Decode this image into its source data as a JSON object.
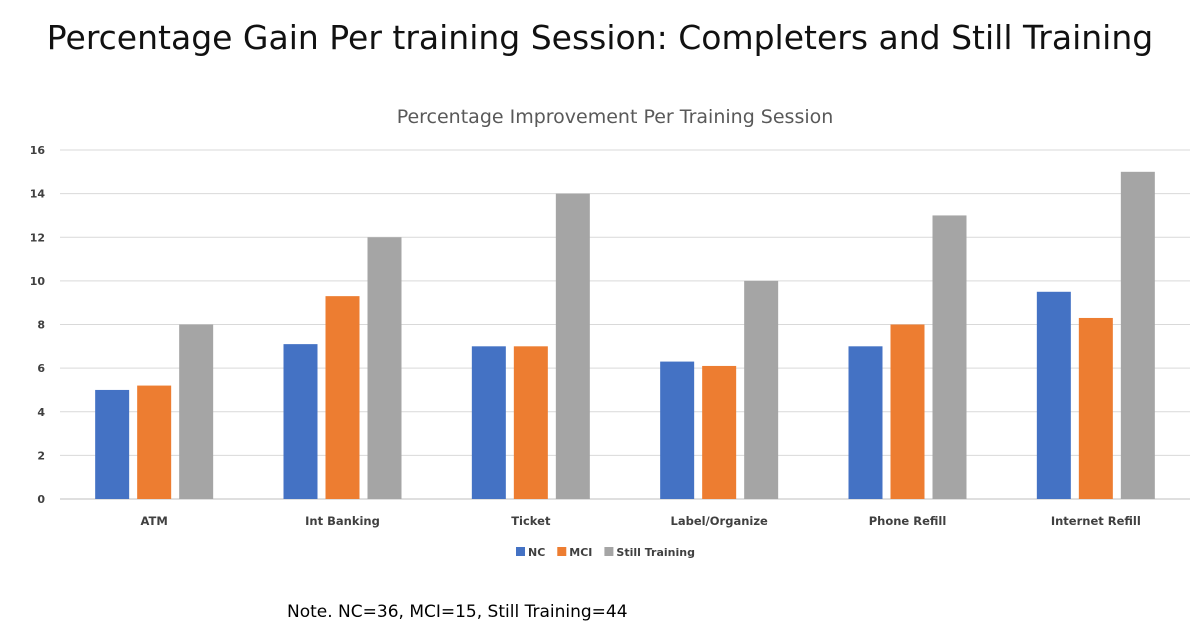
{
  "slide": {
    "title": "Percentage Gain Per training Session: Completers and Still Training",
    "note": "Note.  NC=36, MCI=15, Still Training=44"
  },
  "chart_data": {
    "type": "bar",
    "title": "Percentage Improvement Per Training Session",
    "xlabel": "",
    "ylabel": "",
    "categories": [
      "ATM",
      "Int Banking",
      "Ticket",
      "Label/Organize",
      "Phone Refill",
      "Internet Refill"
    ],
    "series": [
      {
        "name": "NC",
        "color": "#4472C4",
        "values": [
          5,
          7.1,
          7,
          6.3,
          7,
          9.5
        ]
      },
      {
        "name": "MCI",
        "color": "#ED7D31",
        "values": [
          5.2,
          9.3,
          7,
          6.1,
          8,
          8.3
        ]
      },
      {
        "name": "Still Training",
        "color": "#A5A5A5",
        "values": [
          8,
          12,
          14,
          10,
          13,
          15
        ]
      }
    ],
    "ylim": [
      0,
      16
    ],
    "yticks": [
      0,
      2,
      4,
      6,
      8,
      10,
      12,
      14,
      16
    ],
    "grid": true,
    "legend_position": "bottom"
  }
}
